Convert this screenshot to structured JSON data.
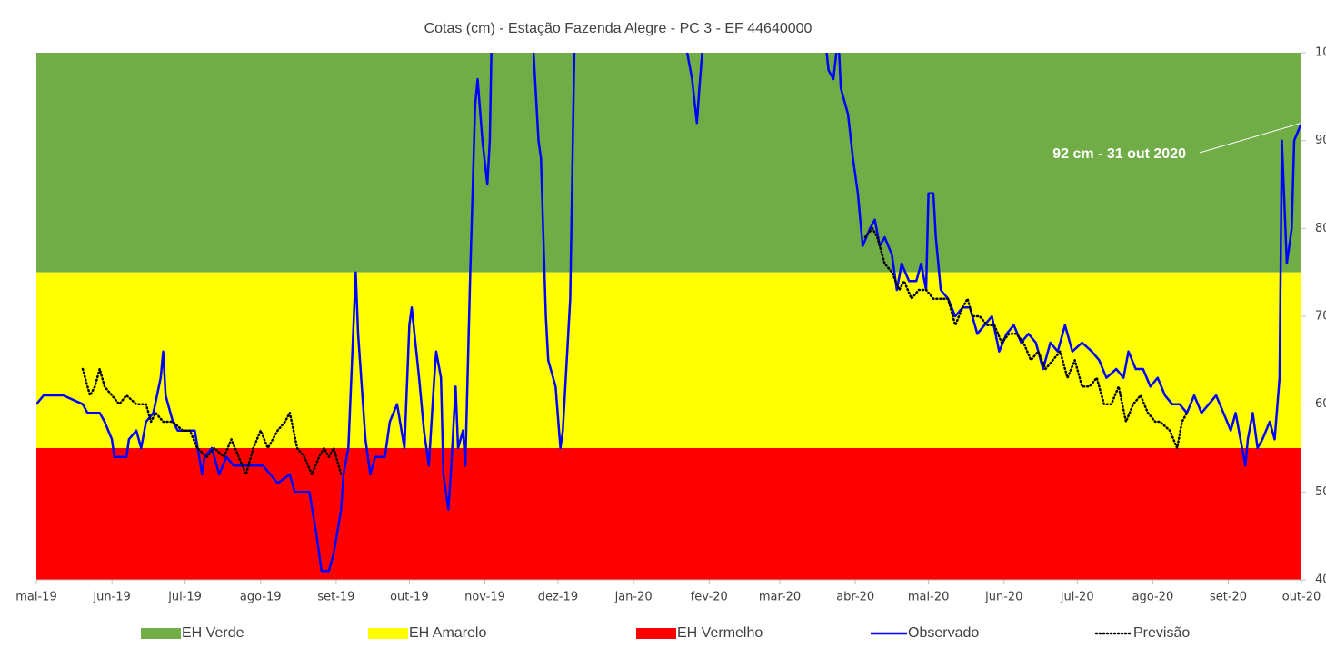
{
  "chart_data": {
    "type": "line",
    "title": "Cotas (cm) - Estação Fazenda Alegre - PC 3 - EF 44640000",
    "xlim": [
      0,
      519
    ],
    "xticks": [
      {
        "value": 0,
        "label": "mai-19"
      },
      {
        "value": 31,
        "label": "jun-19"
      },
      {
        "value": 61,
        "label": "jul-19"
      },
      {
        "value": 92,
        "label": "ago-19"
      },
      {
        "value": 123,
        "label": "set-19"
      },
      {
        "value": 153,
        "label": "out-19"
      },
      {
        "value": 184,
        "label": "nov-19"
      },
      {
        "value": 214,
        "label": "dez-19"
      },
      {
        "value": 245,
        "label": "jan-20"
      },
      {
        "value": 276,
        "label": "fev-20"
      },
      {
        "value": 305,
        "label": "mar-20"
      },
      {
        "value": 336,
        "label": "abr-20"
      },
      {
        "value": 366,
        "label": "mai-20"
      },
      {
        "value": 397,
        "label": "jun-20"
      },
      {
        "value": 427,
        "label": "jul-20"
      },
      {
        "value": 458,
        "label": "ago-20"
      },
      {
        "value": 489,
        "label": "set-20"
      },
      {
        "value": 519,
        "label": "out-20"
      }
    ],
    "ylim": [
      40,
      100
    ],
    "yticks": [
      40,
      50,
      60,
      70,
      80,
      90,
      100
    ],
    "bands": [
      {
        "name": "EH Verde",
        "from": 75,
        "to": 100,
        "color": "#70ad47"
      },
      {
        "name": "EH Amarelo",
        "from": 55,
        "to": 75,
        "color": "#ffff00"
      },
      {
        "name": "EH Vermelho",
        "from": 40,
        "to": 55,
        "color": "#ff0000"
      }
    ],
    "series": [
      {
        "name": "Observado",
        "color": "#0000ff",
        "style": "solid",
        "x": [
          0,
          3,
          11,
          19,
          21,
          26,
          28,
          31,
          32,
          37,
          38,
          41,
          43,
          45,
          48,
          51,
          52,
          53,
          56,
          58,
          65,
          68,
          69,
          72,
          75,
          78,
          81,
          86,
          93,
          96,
          99,
          104,
          106,
          112,
          115,
          117,
          120,
          122,
          125,
          126,
          128,
          131,
          132,
          135,
          137,
          139,
          143,
          145,
          148,
          151,
          153,
          154,
          157,
          159,
          161,
          163,
          164,
          166,
          167,
          169,
          170,
          172,
          173,
          175,
          176,
          178,
          180,
          181,
          183,
          185,
          186,
          187,
          190,
          201,
          204,
          206,
          207,
          209,
          210,
          213,
          215,
          216,
          219,
          221,
          227,
          246,
          266,
          267,
          269,
          271,
          272,
          274,
          283,
          306,
          323,
          325,
          327,
          329,
          330,
          333,
          335,
          337,
          339,
          342,
          344,
          346,
          348,
          351,
          353,
          355,
          358,
          361,
          363,
          365,
          366,
          368,
          369,
          371,
          374,
          377,
          380,
          383,
          386,
          389,
          392,
          395,
          398,
          401,
          404,
          407,
          410,
          413,
          416,
          419,
          422,
          425,
          429,
          433,
          436,
          439,
          443,
          446,
          448,
          451,
          454,
          457,
          460,
          463,
          466,
          469,
          472,
          475,
          478,
          481,
          484,
          487,
          490,
          492,
          494,
          496,
          497,
          499,
          501,
          503,
          506,
          508,
          510,
          511,
          513,
          515,
          516,
          519
        ],
        "values": [
          60,
          61,
          61,
          60,
          59,
          59,
          58,
          56,
          54,
          54,
          56,
          57,
          55,
          58,
          59,
          63,
          66,
          61,
          58,
          57,
          57,
          52,
          54,
          55,
          52,
          54,
          53,
          53,
          53,
          52,
          51,
          52,
          50,
          50,
          45,
          41,
          41,
          43,
          48,
          52,
          55,
          75,
          68,
          56,
          52,
          54,
          54,
          58,
          60,
          55,
          69,
          71,
          63,
          57,
          53,
          62,
          66,
          63,
          52,
          48,
          52,
          62,
          55,
          57,
          53,
          75,
          94,
          97,
          90,
          85,
          90,
          105,
          120,
          115,
          100,
          90,
          88,
          70,
          65,
          62,
          55,
          57,
          72,
          105,
          130,
          130,
          102,
          100,
          97,
          92,
          96,
          103,
          130,
          125,
          103,
          98,
          97,
          102,
          96,
          93,
          88,
          84,
          78,
          80,
          81,
          78,
          79,
          77,
          73,
          76,
          74,
          74,
          76,
          73,
          84,
          84,
          79,
          73,
          72,
          70,
          71,
          71,
          68,
          69,
          70,
          66,
          68,
          69,
          67,
          68,
          67,
          64,
          67,
          66,
          69,
          66,
          67,
          66,
          65,
          63,
          64,
          63,
          66,
          64,
          64,
          62,
          63,
          61,
          60,
          60,
          59,
          61,
          59,
          60,
          61,
          59,
          57,
          59,
          56,
          53,
          56,
          59,
          55,
          56,
          58,
          56,
          63,
          90,
          76,
          80,
          90,
          92
        ]
      },
      {
        "name": "Previsão",
        "color": "#000000",
        "style": "dotted",
        "x": [
          19,
          22,
          24,
          26,
          28,
          31,
          34,
          37,
          41,
          45,
          47,
          49,
          52,
          56,
          60,
          63,
          66,
          70,
          73,
          77,
          80,
          83,
          86,
          89,
          92,
          95,
          97,
          99,
          102,
          104,
          107,
          110,
          113,
          116,
          118,
          120,
          122,
          125,
          null,
          340,
          343,
          345,
          348,
          351,
          354,
          356,
          359,
          362,
          365,
          368,
          371,
          374,
          377,
          380,
          382,
          384,
          387,
          390,
          393,
          396,
          399,
          402,
          405,
          408,
          411,
          414,
          417,
          420,
          423,
          426,
          429,
          432,
          435,
          438,
          441,
          444,
          447,
          450,
          453,
          456,
          459,
          461,
          465,
          468,
          470,
          472
        ],
        "values": [
          64,
          61,
          62,
          64,
          62,
          61,
          60,
          61,
          60,
          60,
          58,
          59,
          58,
          58,
          57,
          57,
          55,
          54,
          55,
          54,
          56,
          54,
          52,
          55,
          57,
          55,
          56,
          57,
          58,
          59,
          55,
          54,
          52,
          54,
          55,
          54,
          55,
          52,
          null,
          79,
          80,
          79,
          76,
          75,
          73,
          74,
          72,
          73,
          73,
          72,
          72,
          72,
          69,
          71,
          72,
          70,
          70,
          69,
          69,
          67,
          68,
          68,
          67,
          65,
          66,
          64,
          65,
          66,
          63,
          65,
          62,
          62,
          63,
          60,
          60,
          62,
          58,
          60,
          61,
          59,
          58,
          58,
          57,
          55,
          58,
          59
        ]
      }
    ],
    "annotation": {
      "text": "92 cm - 31 out 2020",
      "x": 519,
      "y": 92
    }
  }
}
